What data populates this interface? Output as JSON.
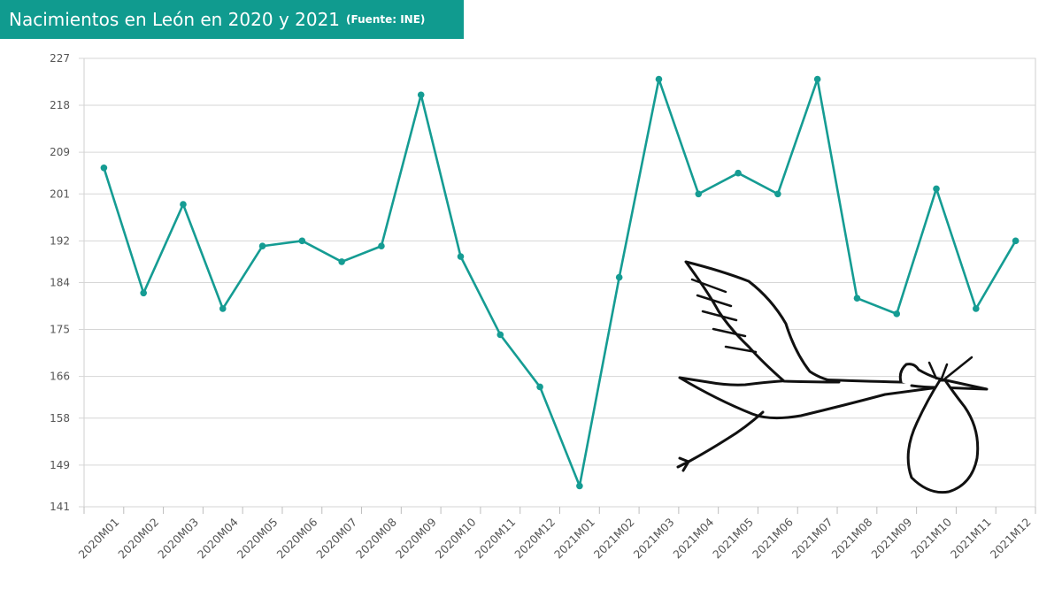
{
  "header": {
    "title": "Nacimientos en León en 2020 y 2021",
    "source": "(Fuente: INE)"
  },
  "colors": {
    "banner": "#109b8f",
    "line": "#159c93",
    "grid": "#d6d6d6",
    "axis_text": "#555555"
  },
  "illustration": {
    "icon": "stork-carrying-bundle-icon"
  },
  "chart_data": {
    "type": "line",
    "title": "",
    "xlabel": "",
    "ylabel": "",
    "ylim": [
      141,
      227
    ],
    "yticks": [
      141,
      149,
      158,
      166,
      175,
      184,
      192,
      201,
      209,
      218,
      227
    ],
    "grid": true,
    "categories": [
      "2020M01",
      "2020M02",
      "2020M03",
      "2020M04",
      "2020M05",
      "2020M06",
      "2020M07",
      "2020M08",
      "2020M09",
      "2020M10",
      "2020M11",
      "2020M12",
      "2021M01",
      "2021M02",
      "2021M03",
      "2021M04",
      "2021M05",
      "2021M06",
      "2021M07",
      "2021M08",
      "2021M09",
      "2021M10",
      "2021M11",
      "2021M12"
    ],
    "series": [
      {
        "values": [
          206,
          182,
          199,
          179,
          191,
          192,
          188,
          191,
          220,
          189,
          174,
          164,
          145,
          185,
          223,
          201,
          205,
          201,
          223,
          181,
          178,
          202,
          179,
          192
        ]
      }
    ]
  }
}
